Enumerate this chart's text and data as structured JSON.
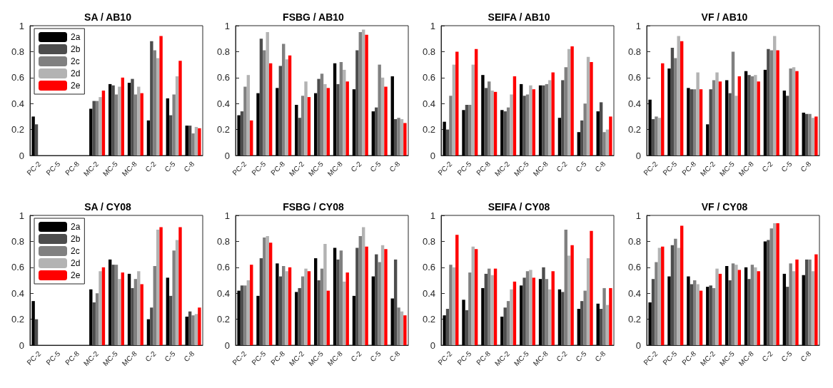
{
  "chart_data": [
    {
      "type": "bar",
      "title": "SA / AB10",
      "categories": [
        "PC-2",
        "PC-5",
        "PC-8",
        "MC-2",
        "MC-5",
        "MC-8",
        "C-2",
        "C-5",
        "C-8"
      ],
      "ylim": [
        0,
        1
      ],
      "yticks": [
        0,
        0.2,
        0.4,
        0.6,
        0.8,
        1
      ],
      "legend": "top left",
      "series": [
        {
          "name": "2a",
          "color": "#000000",
          "values": [
            0.3,
            null,
            null,
            0.36,
            0.55,
            0.56,
            0.27,
            0.44,
            0.23
          ]
        },
        {
          "name": "2b",
          "color": "#4d4d4d",
          "values": [
            0.24,
            null,
            null,
            0.42,
            0.54,
            0.59,
            0.88,
            0.31,
            0.23
          ]
        },
        {
          "name": "2c",
          "color": "#808080",
          "values": [
            null,
            null,
            null,
            0.42,
            0.47,
            0.47,
            0.81,
            0.47,
            0.17
          ]
        },
        {
          "name": "2d",
          "color": "#b3b3b3",
          "values": [
            null,
            null,
            null,
            0.45,
            0.53,
            0.53,
            0.75,
            0.61,
            0.22
          ]
        },
        {
          "name": "2e",
          "color": "#ff0000",
          "values": [
            null,
            null,
            null,
            0.5,
            0.6,
            0.48,
            0.92,
            0.73,
            0.21
          ]
        }
      ]
    },
    {
      "type": "bar",
      "title": "FSBG / AB10",
      "categories": [
        "PC-2",
        "PC-5",
        "PC-8",
        "MC-2",
        "MC-5",
        "MC-8",
        "C-2",
        "C-5",
        "C-8"
      ],
      "ylim": [
        0,
        1
      ],
      "yticks": [
        0,
        0.2,
        0.4,
        0.6,
        0.8,
        1
      ],
      "series": [
        {
          "color": "#000000",
          "values": [
            0.31,
            0.48,
            0.52,
            0.39,
            0.48,
            0.71,
            0.51,
            0.34,
            0.61
          ]
        },
        {
          "color": "#4d4d4d",
          "values": [
            0.34,
            0.9,
            0.69,
            0.29,
            0.59,
            0.55,
            0.81,
            0.37,
            0.28
          ]
        },
        {
          "color": "#808080",
          "values": [
            0.53,
            0.81,
            0.86,
            0.46,
            0.63,
            0.72,
            0.95,
            0.7,
            0.29
          ]
        },
        {
          "color": "#b3b3b3",
          "values": [
            0.62,
            0.95,
            0.74,
            0.57,
            0.55,
            0.66,
            0.97,
            0.6,
            0.28
          ]
        },
        {
          "color": "#ff0000",
          "values": [
            0.27,
            0.71,
            0.77,
            0.45,
            0.52,
            0.57,
            0.93,
            0.53,
            0.25
          ]
        }
      ]
    },
    {
      "type": "bar",
      "title": "SEIFA / AB10",
      "categories": [
        "PC-2",
        "PC-5",
        "PC-8",
        "MC-2",
        "MC-5",
        "MC-8",
        "C-2",
        "C-5",
        "C-8"
      ],
      "ylim": [
        0,
        1
      ],
      "yticks": [
        0,
        0.2,
        0.4,
        0.6,
        0.8,
        1
      ],
      "series": [
        {
          "color": "#000000",
          "values": [
            0.26,
            0.35,
            0.62,
            0.35,
            0.55,
            0.54,
            0.29,
            0.18,
            0.34
          ]
        },
        {
          "color": "#4d4d4d",
          "values": [
            0.2,
            0.39,
            0.52,
            0.34,
            0.46,
            0.54,
            0.58,
            0.27,
            0.41
          ]
        },
        {
          "color": "#808080",
          "values": [
            0.46,
            0.39,
            0.57,
            0.37,
            0.47,
            0.55,
            0.68,
            0.4,
            0.18
          ]
        },
        {
          "color": "#b3b3b3",
          "values": [
            0.7,
            0.7,
            0.5,
            0.47,
            0.54,
            0.58,
            0.82,
            0.76,
            0.2
          ]
        },
        {
          "color": "#ff0000",
          "values": [
            0.8,
            0.82,
            0.49,
            0.61,
            0.51,
            0.64,
            0.84,
            0.72,
            0.3
          ]
        }
      ]
    },
    {
      "type": "bar",
      "title": "VF / AB10",
      "categories": [
        "PC-2",
        "PC-5",
        "PC-8",
        "MC-2",
        "MC-5",
        "MC-8",
        "C-2",
        "C-5",
        "C-8"
      ],
      "ylim": [
        0,
        1
      ],
      "yticks": [
        0,
        0.2,
        0.4,
        0.6,
        0.8,
        1
      ],
      "series": [
        {
          "color": "#000000",
          "values": [
            0.43,
            0.67,
            0.52,
            0.24,
            0.58,
            0.65,
            0.66,
            0.5,
            0.33
          ]
        },
        {
          "color": "#4d4d4d",
          "values": [
            0.28,
            0.83,
            0.51,
            0.51,
            0.48,
            0.62,
            0.82,
            0.46,
            0.32
          ]
        },
        {
          "color": "#808080",
          "values": [
            0.3,
            0.75,
            0.51,
            0.58,
            0.8,
            0.61,
            0.81,
            0.67,
            0.32
          ]
        },
        {
          "color": "#b3b3b3",
          "values": [
            0.29,
            0.92,
            0.64,
            0.64,
            0.46,
            0.62,
            0.92,
            0.68,
            0.29
          ]
        },
        {
          "color": "#ff0000",
          "values": [
            0.71,
            0.88,
            0.51,
            0.57,
            0.61,
            0.57,
            0.81,
            0.65,
            0.3
          ]
        }
      ]
    },
    {
      "type": "bar",
      "title": "SA / CY08",
      "categories": [
        "PC-2",
        "PC-5",
        "PC-8",
        "MC-2",
        "MC-5",
        "MC-8",
        "C-2",
        "C-5",
        "C-8"
      ],
      "ylim": [
        0,
        1
      ],
      "yticks": [
        0,
        0.2,
        0.4,
        0.6,
        0.8,
        1
      ],
      "legend": "top left",
      "series": [
        {
          "name": "2a",
          "color": "#000000",
          "values": [
            0.34,
            null,
            null,
            0.43,
            0.66,
            0.55,
            0.2,
            0.52,
            0.22
          ]
        },
        {
          "name": "2b",
          "color": "#4d4d4d",
          "values": [
            0.2,
            null,
            null,
            0.33,
            0.62,
            0.44,
            0.29,
            0.38,
            0.26
          ]
        },
        {
          "name": "2c",
          "color": "#808080",
          "values": [
            null,
            null,
            null,
            0.4,
            0.62,
            0.51,
            0.61,
            0.73,
            0.23
          ]
        },
        {
          "name": "2d",
          "color": "#b3b3b3",
          "values": [
            null,
            null,
            null,
            0.57,
            0.51,
            0.57,
            0.89,
            0.81,
            0.24
          ]
        },
        {
          "name": "2e",
          "color": "#ff0000",
          "values": [
            null,
            null,
            null,
            0.6,
            0.56,
            0.47,
            0.91,
            0.91,
            0.29
          ]
        }
      ]
    },
    {
      "type": "bar",
      "title": "FSBG / CY08",
      "categories": [
        "PC-2",
        "PC-5",
        "PC-8",
        "MC-2",
        "MC-5",
        "MC-8",
        "C-2",
        "C-5",
        "C-8"
      ],
      "ylim": [
        0,
        1
      ],
      "yticks": [
        0,
        0.2,
        0.4,
        0.6,
        0.8,
        1
      ],
      "series": [
        {
          "color": "#000000",
          "values": [
            0.42,
            0.38,
            0.63,
            0.41,
            0.67,
            0.75,
            0.38,
            0.53,
            0.36
          ]
        },
        {
          "color": "#4d4d4d",
          "values": [
            0.46,
            0.67,
            0.53,
            0.44,
            0.5,
            0.66,
            0.75,
            0.7,
            0.66
          ]
        },
        {
          "color": "#808080",
          "values": [
            0.46,
            0.83,
            0.61,
            0.53,
            0.59,
            0.73,
            0.84,
            0.64,
            0.29
          ]
        },
        {
          "color": "#b3b3b3",
          "values": [
            0.5,
            0.84,
            0.57,
            0.59,
            0.78,
            0.49,
            0.91,
            0.77,
            0.26
          ]
        },
        {
          "color": "#ff0000",
          "values": [
            0.62,
            0.79,
            0.6,
            0.57,
            0.42,
            0.56,
            0.76,
            0.74,
            0.23
          ]
        }
      ]
    },
    {
      "type": "bar",
      "title": "SEIFA / CY08",
      "categories": [
        "PC-2",
        "PC-5",
        "PC-8",
        "MC-2",
        "MC-5",
        "MC-8",
        "C-2",
        "C-5",
        "C-8"
      ],
      "ylim": [
        0,
        1
      ],
      "yticks": [
        0,
        0.2,
        0.4,
        0.6,
        0.8,
        1
      ],
      "series": [
        {
          "color": "#000000",
          "values": [
            0.23,
            0.35,
            0.44,
            0.22,
            0.46,
            0.51,
            0.43,
            0.28,
            0.32
          ]
        },
        {
          "color": "#4d4d4d",
          "values": [
            0.28,
            0.27,
            0.55,
            0.29,
            0.52,
            0.6,
            0.41,
            0.34,
            0.28
          ]
        },
        {
          "color": "#808080",
          "values": [
            0.62,
            0.56,
            0.59,
            0.34,
            0.57,
            0.51,
            0.89,
            0.42,
            0.44
          ]
        },
        {
          "color": "#b3b3b3",
          "values": [
            0.6,
            0.76,
            0.54,
            0.43,
            0.58,
            0.43,
            0.69,
            0.67,
            0.31
          ]
        },
        {
          "color": "#ff0000",
          "values": [
            0.85,
            0.74,
            0.59,
            0.49,
            0.52,
            0.57,
            0.77,
            0.88,
            0.44
          ]
        }
      ]
    },
    {
      "type": "bar",
      "title": "VF / CY08",
      "categories": [
        "PC-2",
        "PC-5",
        "PC-8",
        "MC-2",
        "MC-5",
        "MC-8",
        "C-2",
        "C-5",
        "C-8"
      ],
      "ylim": [
        0,
        1
      ],
      "yticks": [
        0,
        0.2,
        0.4,
        0.6,
        0.8,
        1
      ],
      "series": [
        {
          "color": "#000000",
          "values": [
            0.33,
            0.53,
            0.53,
            0.45,
            0.61,
            0.6,
            0.8,
            0.55,
            0.54
          ]
        },
        {
          "color": "#4d4d4d",
          "values": [
            0.51,
            0.77,
            0.47,
            0.46,
            0.5,
            0.51,
            0.81,
            0.45,
            0.66
          ]
        },
        {
          "color": "#808080",
          "values": [
            0.64,
            0.82,
            0.5,
            0.44,
            0.63,
            0.62,
            0.9,
            0.63,
            0.66
          ]
        },
        {
          "color": "#b3b3b3",
          "values": [
            0.75,
            0.75,
            0.47,
            0.59,
            0.62,
            0.6,
            0.94,
            0.57,
            0.57
          ]
        },
        {
          "color": "#ff0000",
          "values": [
            0.76,
            0.92,
            0.42,
            0.55,
            0.58,
            0.57,
            0.94,
            0.66,
            0.7
          ]
        }
      ]
    }
  ]
}
